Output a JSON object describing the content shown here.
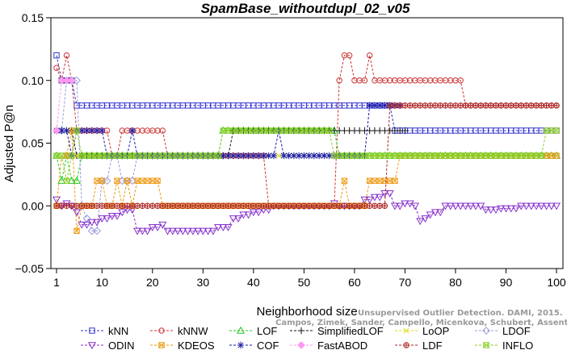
{
  "chart_data": {
    "type": "line",
    "title": "SpamBase_withoutdupl_02_v05",
    "xlabel": "Neighborhood size",
    "ylabel": "Adjusted P@n",
    "xlim": [
      1,
      100
    ],
    "ylim": [
      -0.05,
      0.15
    ],
    "x_ticks": [
      1,
      10,
      20,
      30,
      40,
      50,
      60,
      70,
      80,
      90,
      100
    ],
    "y_ticks": [
      -0.05,
      0.0,
      0.05,
      0.1,
      0.15
    ],
    "y_tick_labels": [
      "−0.05",
      "0.00",
      "0.05",
      "0.10",
      "0.15"
    ],
    "grid": false,
    "legend_position": "bottom",
    "watermark": [
      "Unsupervised Outlier Detection. DAMI, 2015.",
      "Campos, Zimek, Sander, Campello, Micenkova, Schubert, Assent, Houle"
    ],
    "series": [
      {
        "name": "kNN",
        "color": "#3333cc",
        "marker": "square",
        "segments": [
          [
            1,
            0.12
          ],
          [
            2,
            0.1
          ],
          [
            4,
            0.1
          ],
          [
            5,
            0.08
          ],
          [
            67,
            0.08
          ],
          [
            68,
            0.06
          ],
          [
            98,
            0.06
          ],
          [
            99,
            0.06
          ],
          [
            100,
            0.06
          ]
        ]
      },
      {
        "name": "kNNW",
        "color": "#cc3333",
        "marker": "circle",
        "segments": [
          [
            1,
            0.11
          ],
          [
            2,
            0.1
          ],
          [
            3,
            0.12
          ],
          [
            4,
            0.1
          ],
          [
            5,
            0.06
          ],
          [
            11,
            0.06
          ],
          [
            12,
            0.04
          ],
          [
            14,
            0.06
          ],
          [
            22,
            0.06
          ],
          [
            23,
            0.04
          ],
          [
            42,
            0.04
          ],
          [
            43,
            0.0
          ],
          [
            56,
            0.0
          ],
          [
            57,
            0.1
          ],
          [
            58,
            0.12
          ],
          [
            59,
            0.12
          ],
          [
            60,
            0.1
          ],
          [
            62,
            0.1
          ],
          [
            63,
            0.12
          ],
          [
            64,
            0.1
          ],
          [
            81,
            0.1
          ],
          [
            82,
            0.08
          ],
          [
            100,
            0.08
          ]
        ]
      },
      {
        "name": "LOF",
        "color": "#22cc22",
        "marker": "triangle-up",
        "segments": [
          [
            1,
            0.04
          ],
          [
            2,
            0.02
          ],
          [
            3,
            0.04
          ],
          [
            4,
            0.02
          ],
          [
            5,
            0.02
          ],
          [
            6,
            0.04
          ],
          [
            33,
            0.04
          ],
          [
            34,
            0.06
          ],
          [
            56,
            0.06
          ],
          [
            57,
            0.04
          ],
          [
            100,
            0.04
          ]
        ]
      },
      {
        "name": "SimplifiedLOF",
        "color": "#111111",
        "marker": "plus",
        "segments": [
          [
            1,
            0.06
          ],
          [
            4,
            0.06
          ],
          [
            5,
            0.04
          ],
          [
            33,
            0.04
          ],
          [
            36,
            0.06
          ],
          [
            69,
            0.06
          ],
          [
            70,
            0.06
          ]
        ]
      },
      {
        "name": "LoOP",
        "color": "#dddd22",
        "marker": "x",
        "segments": [
          [
            1,
            0.06
          ],
          [
            3,
            0.06
          ],
          [
            4,
            0.04
          ],
          [
            96,
            0.04
          ]
        ]
      },
      {
        "name": "LDOF",
        "color": "#9999dd",
        "marker": "diamond",
        "segments": [
          [
            1,
            0.06
          ],
          [
            3,
            0.1
          ],
          [
            5,
            0.1
          ],
          [
            6,
            0.0
          ],
          [
            7,
            -0.01
          ],
          [
            8,
            -0.02
          ],
          [
            9,
            -0.02
          ],
          [
            10,
            0.02
          ],
          [
            11,
            0.02
          ],
          [
            12,
            0.04
          ],
          [
            14,
            0.02
          ],
          [
            16,
            0.02
          ],
          [
            17,
            0.04
          ],
          [
            30,
            0.04
          ],
          [
            31,
            0.04
          ]
        ]
      },
      {
        "name": "ODIN",
        "color": "#8833cc",
        "marker": "triangle-down",
        "segments": [
          [
            1,
            0.005
          ],
          [
            2,
            0.0
          ],
          [
            3,
            0.002
          ],
          [
            4,
            0.0
          ],
          [
            5,
            -0.005
          ],
          [
            6,
            -0.015
          ],
          [
            8,
            -0.013
          ],
          [
            10,
            -0.01
          ],
          [
            12,
            -0.008
          ],
          [
            14,
            -0.005
          ],
          [
            15,
            -0.003
          ],
          [
            16,
            -0.003
          ],
          [
            17,
            -0.02
          ],
          [
            20,
            -0.017
          ],
          [
            22,
            -0.015
          ],
          [
            23,
            -0.02
          ],
          [
            32,
            -0.02
          ],
          [
            33,
            -0.017
          ],
          [
            36,
            -0.01
          ],
          [
            38,
            -0.007
          ],
          [
            40,
            -0.005
          ],
          [
            42,
            -0.003
          ],
          [
            44,
            0.0
          ],
          [
            55,
            0.0
          ],
          [
            56,
            0.002
          ],
          [
            57,
            0.0
          ],
          [
            60,
            0.0
          ],
          [
            62,
            0.005
          ],
          [
            64,
            0.007
          ],
          [
            66,
            0.01
          ],
          [
            67,
            0.01
          ],
          [
            68,
            0.0
          ],
          [
            70,
            0.002
          ],
          [
            72,
            0.0
          ],
          [
            73,
            -0.012
          ],
          [
            74,
            -0.01
          ],
          [
            75,
            -0.007
          ],
          [
            76,
            -0.005
          ],
          [
            78,
            0.0
          ],
          [
            85,
            0.0
          ],
          [
            86,
            -0.003
          ],
          [
            88,
            -0.003
          ],
          [
            89,
            -0.002
          ],
          [
            90,
            -0.002
          ],
          [
            93,
            0.0
          ],
          [
            100,
            0.0
          ]
        ]
      },
      {
        "name": "KDEOS",
        "color": "#ee9911",
        "marker": "square-x",
        "segments": [
          [
            1,
            0.0
          ],
          [
            2,
            0.04
          ],
          [
            3,
            0.04
          ],
          [
            4,
            0.06
          ],
          [
            5,
            -0.02
          ],
          [
            6,
            0.0
          ],
          [
            8,
            0.0
          ],
          [
            9,
            0.02
          ],
          [
            10,
            0.02
          ],
          [
            11,
            0.0
          ],
          [
            12,
            0.0
          ],
          [
            13,
            0.02
          ],
          [
            14,
            0.0
          ],
          [
            15,
            0.02
          ],
          [
            16,
            0.0
          ],
          [
            17,
            0.02
          ],
          [
            21,
            0.02
          ],
          [
            22,
            0.0
          ],
          [
            52,
            0.0
          ],
          [
            53,
            0.0
          ],
          [
            57,
            0.0
          ],
          [
            58,
            0.02
          ],
          [
            59,
            0.0
          ],
          [
            62,
            0.0
          ],
          [
            63,
            0.02
          ],
          [
            68,
            0.02
          ],
          [
            69,
            0.04
          ],
          [
            100,
            0.04
          ]
        ]
      },
      {
        "name": "COF",
        "color": "#1a1aaa",
        "marker": "asterisk",
        "segments": [
          [
            1,
            0.06
          ],
          [
            3,
            0.06
          ],
          [
            4,
            0.04
          ],
          [
            5,
            0.06
          ],
          [
            10,
            0.06
          ],
          [
            11,
            0.04
          ],
          [
            15,
            0.04
          ],
          [
            16,
            0.06
          ],
          [
            17,
            0.04
          ],
          [
            44,
            0.04
          ],
          [
            45,
            0.06
          ],
          [
            46,
            0.04
          ],
          [
            62,
            0.04
          ],
          [
            63,
            0.08
          ],
          [
            69,
            0.08
          ]
        ]
      },
      {
        "name": "FastABOD",
        "color": "#ff99ee",
        "marker": "diamond-filled",
        "segments": [
          [
            1,
            0.06
          ],
          [
            2,
            0.1
          ],
          [
            3,
            0.1
          ],
          [
            4,
            0.1
          ]
        ]
      },
      {
        "name": "LDF",
        "color": "#aa2222",
        "marker": "circle-plus",
        "segments": [
          [
            1,
            0.0
          ],
          [
            2,
            0.0
          ],
          [
            3,
            0.0
          ],
          [
            42,
            0.0
          ],
          [
            43,
            0.0
          ],
          [
            55,
            0.0
          ],
          [
            67,
            0.08
          ],
          [
            68,
            0.08
          ],
          [
            100,
            0.08
          ]
        ]
      },
      {
        "name": "INFLO",
        "color": "#88cc22",
        "marker": "square-x",
        "segments": [
          [
            1,
            0.04
          ],
          [
            2,
            0.04
          ],
          [
            3,
            0.02
          ],
          [
            4,
            0.04
          ],
          [
            5,
            0.06
          ],
          [
            6,
            0.04
          ],
          [
            33,
            0.04
          ],
          [
            34,
            0.06
          ],
          [
            55,
            0.06
          ],
          [
            56,
            0.04
          ],
          [
            97,
            0.04
          ],
          [
            98,
            0.06
          ],
          [
            100,
            0.06
          ]
        ]
      }
    ]
  }
}
